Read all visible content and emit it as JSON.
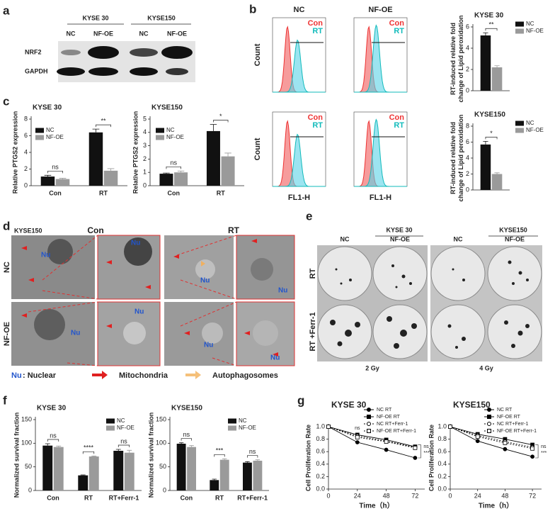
{
  "panel_labels": [
    "a",
    "b",
    "c",
    "d",
    "e",
    "f",
    "g"
  ],
  "western_blot": {
    "groups": [
      "KYSE 30",
      "KYSE150"
    ],
    "lanes": [
      "NC",
      "NF-OE",
      "NC",
      "NF-OE"
    ],
    "rows": [
      "NRF2",
      "GAPDH"
    ]
  },
  "flow_cytometry": {
    "columns": [
      "NC",
      "NF-OE"
    ],
    "y_label": "Count",
    "x_label": "FL1-H",
    "legend": [
      "Con",
      "RT"
    ]
  },
  "tem": {
    "cell_line": "KYSE150",
    "columns": [
      "Con",
      "RT"
    ],
    "rows": [
      "NC",
      "NF-OE"
    ],
    "nucleus_label": "Nu",
    "legend": {
      "nucleus_symbol": "Nu",
      "nucleus_text": ": Nuclear",
      "mitochondria": "Mitochondria",
      "autophagosomes": "Autophagosomes"
    }
  },
  "colony": {
    "groups": [
      "KYSE 30",
      "KYSE150"
    ],
    "columns": [
      "NC",
      "NF-OE",
      "NC",
      "NF-OE"
    ],
    "rows": [
      "RT",
      "RT +Ferr-1"
    ],
    "doses": [
      "2 Gy",
      "4 Gy"
    ]
  },
  "chart_data": [
    {
      "type": "bar",
      "title": "KYSE 30",
      "y_label": [
        "RT-induced relative fold",
        "change of Lipid peroxidation"
      ],
      "categories": [
        null
      ],
      "series": [
        {
          "name": "NC",
          "color": "#111111",
          "values": [
            5.2
          ],
          "errors": [
            0.25
          ]
        },
        {
          "name": "NF-OE",
          "color": "#9a9a9a",
          "values": [
            2.2
          ],
          "errors": [
            0.15
          ]
        }
      ],
      "annotations": [
        "**"
      ],
      "ylim": [
        0,
        6
      ],
      "yticks": [
        0,
        2,
        4,
        6
      ]
    },
    {
      "type": "bar",
      "title": "KYSE150",
      "y_label": [
        "RT-induced relative fold",
        "change of Lipid peroxidation"
      ],
      "categories": [
        null
      ],
      "series": [
        {
          "name": "NC",
          "color": "#111111",
          "values": [
            5.7
          ],
          "errors": [
            0.4
          ]
        },
        {
          "name": "NF-OE",
          "color": "#9a9a9a",
          "values": [
            2.0
          ],
          "errors": [
            0.15
          ]
        }
      ],
      "annotations": [
        "*"
      ],
      "ylim": [
        0,
        8
      ],
      "yticks": [
        0,
        2,
        4,
        6,
        8
      ]
    },
    {
      "type": "bar",
      "title": "KYSE 30",
      "y_label": [
        "Relative PTGS2  expression"
      ],
      "categories": [
        "Con",
        "RT"
      ],
      "series": [
        {
          "name": "NC",
          "color": "#111111",
          "values": [
            1.1,
            6.4
          ],
          "errors": [
            0.15,
            0.4
          ]
        },
        {
          "name": "NF-OE",
          "color": "#9a9a9a",
          "values": [
            0.8,
            1.8
          ],
          "errors": [
            0.1,
            0.25
          ]
        }
      ],
      "annotations": [
        "ns",
        "**"
      ],
      "ylim": [
        0,
        8
      ],
      "yticks": [
        0,
        2,
        4,
        6,
        8
      ]
    },
    {
      "type": "bar",
      "title": "KYSE150",
      "y_label": [
        "Relative PTGS2  expression"
      ],
      "categories": [
        "Con",
        "RT"
      ],
      "series": [
        {
          "name": "NC",
          "color": "#111111",
          "values": [
            0.9,
            4.1
          ],
          "errors": [
            0.05,
            0.5
          ]
        },
        {
          "name": "NF-OE",
          "color": "#9a9a9a",
          "values": [
            1.0,
            2.2
          ],
          "errors": [
            0.1,
            0.25
          ]
        }
      ],
      "annotations": [
        "ns",
        "*"
      ],
      "ylim": [
        0,
        5
      ],
      "yticks": [
        0,
        1,
        2,
        3,
        4,
        5
      ]
    },
    {
      "type": "bar",
      "title": "KYSE 30",
      "y_label": [
        "Normalized survival fraction"
      ],
      "categories": [
        "Con",
        "RT",
        "RT+Ferr-1"
      ],
      "series": [
        {
          "name": "NC",
          "color": "#111111",
          "values": [
            95,
            32,
            84
          ],
          "errors": [
            4,
            1,
            3
          ]
        },
        {
          "name": "NF-OE",
          "color": "#9a9a9a",
          "values": [
            92,
            72,
            80
          ],
          "errors": [
            2,
            1,
            5
          ]
        }
      ],
      "annotations": [
        "ns",
        "****",
        "ns"
      ],
      "ylim": [
        0,
        150
      ],
      "yticks": [
        0,
        50,
        100,
        150
      ]
    },
    {
      "type": "bar",
      "title": "KYSE150",
      "y_label": [
        "Normalized survival fraction"
      ],
      "categories": [
        "Con",
        "RT",
        "RT+Ferr-1"
      ],
      "series": [
        {
          "name": "NC",
          "color": "#111111",
          "values": [
            99,
            22,
            59
          ],
          "errors": [
            2,
            2,
            2
          ]
        },
        {
          "name": "NF-OE",
          "color": "#9a9a9a",
          "values": [
            92,
            65,
            63
          ],
          "errors": [
            3,
            2,
            2
          ]
        }
      ],
      "annotations": [
        "ns",
        "***",
        "ns"
      ],
      "ylim": [
        0,
        150
      ],
      "yticks": [
        0,
        50,
        100,
        150
      ]
    },
    {
      "type": "line",
      "title": "KYSE 30",
      "x_label": "Time（h）",
      "y_label": [
        "Cell Proliferation Rate"
      ],
      "x": [
        0,
        24,
        48,
        72
      ],
      "series": [
        {
          "name": "NC RT",
          "color": "#000000",
          "marker": "circle",
          "marker_fill": "#000000",
          "dashed": false,
          "values": [
            1.0,
            0.75,
            0.63,
            0.5
          ]
        },
        {
          "name": "NF-OE RT",
          "color": "#000000",
          "marker": "square",
          "marker_fill": "#000000",
          "dashed": false,
          "values": [
            1.0,
            0.87,
            0.79,
            0.68
          ]
        },
        {
          "name": "NC RT+Ferr-1",
          "color": "#000000",
          "marker": "circle",
          "marker_fill": "#ffffff",
          "dashed": true,
          "values": [
            1.0,
            0.85,
            0.77,
            0.67
          ]
        },
        {
          "name": "NF-OE RT+Ferr-1",
          "color": "#000000",
          "marker": "square",
          "marker_fill": "#ffffff",
          "dashed": true,
          "values": [
            1.0,
            0.83,
            0.76,
            0.66
          ]
        }
      ],
      "annotations": [
        "ns",
        "ns",
        "****"
      ],
      "xlim": [
        0,
        80
      ],
      "xticks": [
        0,
        24,
        48,
        72
      ],
      "ylim": [
        0,
        1.0
      ],
      "yticks": [
        {
          "value": 0,
          "label": "0.0"
        },
        0.2,
        0.4,
        0.6,
        0.8,
        {
          "value": 1.0,
          "label": "1.0"
        }
      ]
    },
    {
      "type": "line",
      "title": "KYSE150",
      "x_label": "Time（h）",
      "y_label": [
        "Cell Proliferation Rate"
      ],
      "x": [
        0,
        24,
        48,
        72
      ],
      "series": [
        {
          "name": "NC RT",
          "color": "#000000",
          "marker": "circle",
          "marker_fill": "#000000",
          "dashed": false,
          "values": [
            1.0,
            0.77,
            0.64,
            0.52
          ]
        },
        {
          "name": "NF-OE RT",
          "color": "#000000",
          "marker": "square",
          "marker_fill": "#000000",
          "dashed": false,
          "values": [
            1.0,
            0.88,
            0.8,
            0.71
          ]
        },
        {
          "name": "NC RT+Ferr-1",
          "color": "#000000",
          "marker": "circle",
          "marker_fill": "#ffffff",
          "dashed": true,
          "values": [
            1.0,
            0.86,
            0.76,
            0.67
          ]
        },
        {
          "name": "NF-OE RT+Ferr-1",
          "color": "#000000",
          "marker": "square",
          "marker_fill": "#ffffff",
          "dashed": true,
          "values": [
            1.0,
            0.84,
            0.74,
            0.65
          ]
        }
      ],
      "annotations": [
        null,
        "ns",
        "***"
      ],
      "xlim": [
        0,
        80
      ],
      "xticks": [
        0,
        24,
        48,
        72
      ],
      "ylim": [
        0,
        1.0
      ],
      "yticks": [
        {
          "value": 0,
          "label": "0.0"
        },
        0.2,
        0.4,
        0.6,
        0.8,
        {
          "value": 1.0,
          "label": "1.0"
        }
      ]
    }
  ]
}
